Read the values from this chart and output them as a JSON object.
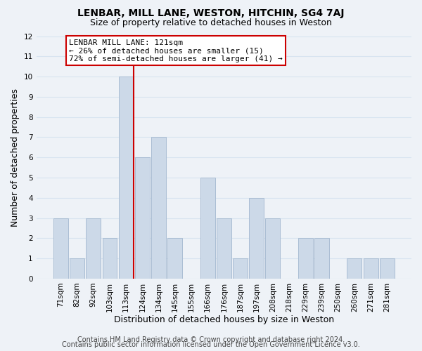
{
  "title": "LENBAR, MILL LANE, WESTON, HITCHIN, SG4 7AJ",
  "subtitle": "Size of property relative to detached houses in Weston",
  "xlabel": "Distribution of detached houses by size in Weston",
  "ylabel": "Number of detached properties",
  "categories": [
    "71sqm",
    "82sqm",
    "92sqm",
    "103sqm",
    "113sqm",
    "124sqm",
    "134sqm",
    "145sqm",
    "155sqm",
    "166sqm",
    "176sqm",
    "187sqm",
    "197sqm",
    "208sqm",
    "218sqm",
    "229sqm",
    "239sqm",
    "250sqm",
    "260sqm",
    "271sqm",
    "281sqm"
  ],
  "values": [
    3,
    1,
    3,
    2,
    10,
    6,
    7,
    2,
    0,
    5,
    3,
    1,
    4,
    3,
    0,
    2,
    2,
    0,
    1,
    1,
    1
  ],
  "bar_color": "#ccd9e8",
  "bar_edge_color": "#aabdd4",
  "highlight_bar_index": 4,
  "highlight_line_color": "#cc0000",
  "ylim": [
    0,
    12
  ],
  "yticks": [
    0,
    1,
    2,
    3,
    4,
    5,
    6,
    7,
    8,
    9,
    10,
    11,
    12
  ],
  "annotation_text": "LENBAR MILL LANE: 121sqm\n← 26% of detached houses are smaller (15)\n72% of semi-detached houses are larger (41) →",
  "annotation_box_facecolor": "#ffffff",
  "annotation_box_edgecolor": "#cc0000",
  "footer_line1": "Contains HM Land Registry data © Crown copyright and database right 2024.",
  "footer_line2": "Contains public sector information licensed under the Open Government Licence v3.0.",
  "background_color": "#eef2f7",
  "grid_color": "#d8e4f0",
  "title_fontsize": 10,
  "subtitle_fontsize": 9,
  "xlabel_fontsize": 9,
  "ylabel_fontsize": 9,
  "tick_fontsize": 7.5,
  "footer_fontsize": 7,
  "ann_fontsize": 8
}
